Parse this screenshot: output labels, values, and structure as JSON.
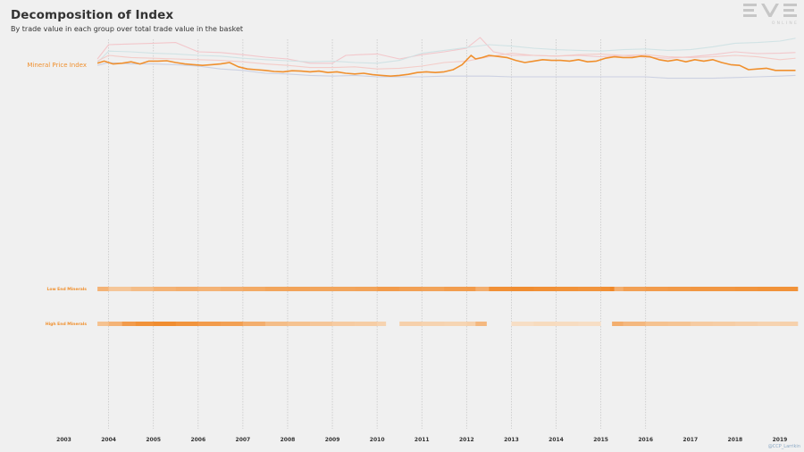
{
  "header": {
    "title": "Decomposition of Index",
    "subtitle": "By trade value in each group over total trade value in the basket"
  },
  "logo": {
    "wordmark": "EVE",
    "tagline": "ONLINE"
  },
  "credit": {
    "text": "@CCP_Larrikin"
  },
  "colors": {
    "background": "#f0f0f0",
    "accent": "#f0902e",
    "gridline": "#c8c8c8",
    "heatmap_empty": "#f0f0f0",
    "context_lines": [
      "#f2c4c8",
      "#cfe2e4",
      "#c9cfe0",
      "#f3c9c5"
    ]
  },
  "chart_data": [
    {
      "type": "line",
      "series": [
        {
          "name": "Mineral Price Index",
          "x": [
            2003.75,
            2003.9,
            2004.1,
            2004.3,
            2004.5,
            2004.7,
            2004.9,
            2005.1,
            2005.3,
            2005.5,
            2005.7,
            2005.9,
            2006.1,
            2006.3,
            2006.5,
            2006.7,
            2006.9,
            2007.1,
            2007.3,
            2007.5,
            2007.7,
            2007.9,
            2008.1,
            2008.3,
            2008.5,
            2008.7,
            2008.9,
            2009.1,
            2009.3,
            2009.5,
            2009.7,
            2009.9,
            2010.1,
            2010.3,
            2010.5,
            2010.7,
            2010.9,
            2011.1,
            2011.3,
            2011.5,
            2011.7,
            2011.9,
            2012.1,
            2012.2,
            2012.35,
            2012.5,
            2012.7,
            2012.9,
            2013.1,
            2013.3,
            2013.5,
            2013.7,
            2013.9,
            2014.1,
            2014.3,
            2014.5,
            2014.7,
            2014.9,
            2015.1,
            2015.3,
            2015.5,
            2015.7,
            2015.9,
            2016.1,
            2016.3,
            2016.5,
            2016.7,
            2016.9,
            2017.1,
            2017.3,
            2017.5,
            2017.7,
            2017.9,
            2018.1,
            2018.3,
            2018.5,
            2018.7,
            2018.9,
            2019.1,
            2019.35
          ],
          "y": [
            0.78,
            0.84,
            0.76,
            0.78,
            0.82,
            0.76,
            0.84,
            0.84,
            0.85,
            0.8,
            0.76,
            0.74,
            0.72,
            0.74,
            0.76,
            0.8,
            0.68,
            0.62,
            0.6,
            0.58,
            0.55,
            0.54,
            0.57,
            0.56,
            0.54,
            0.56,
            0.52,
            0.54,
            0.5,
            0.48,
            0.5,
            0.46,
            0.44,
            0.42,
            0.44,
            0.47,
            0.52,
            0.54,
            0.52,
            0.54,
            0.6,
            0.74,
            1.0,
            0.9,
            0.94,
            1.0,
            0.97,
            0.94,
            0.86,
            0.8,
            0.84,
            0.88,
            0.86,
            0.86,
            0.84,
            0.88,
            0.82,
            0.84,
            0.92,
            0.96,
            0.94,
            0.94,
            0.98,
            0.96,
            0.88,
            0.84,
            0.88,
            0.82,
            0.88,
            0.84,
            0.88,
            0.8,
            0.74,
            0.72,
            0.6,
            0.62,
            0.64,
            0.58,
            0.58,
            0.58
          ]
        },
        {
          "name": "",
          "x": [
            2003.75,
            2004.0,
            2004.5,
            2005.0,
            2005.5,
            2006.0,
            2006.5,
            2007.0,
            2007.5,
            2008.0,
            2008.5,
            2009.0,
            2009.3,
            2009.6,
            2010.0,
            2010.5,
            2011.0,
            2011.5,
            2012.0,
            2012.3,
            2012.6,
            2013.0,
            2013.5,
            2014.0,
            2014.5,
            2015.0,
            2015.5,
            2016.0,
            2016.5,
            2017.0,
            2017.5,
            2018.0,
            2018.5,
            2019.0,
            2019.35
          ],
          "y": [
            0.9,
            1.3,
            1.32,
            1.34,
            1.36,
            1.1,
            1.08,
            1.02,
            0.95,
            0.9,
            0.78,
            0.78,
            1.0,
            1.02,
            1.04,
            0.9,
            1.02,
            1.1,
            1.2,
            1.5,
            1.1,
            1.0,
            1.0,
            0.98,
            1.0,
            0.96,
            1.0,
            0.95,
            0.92,
            0.96,
            1.02,
            1.1,
            1.05,
            1.06,
            1.08
          ]
        },
        {
          "name": "",
          "x": [
            2003.75,
            2004.0,
            2004.5,
            2005.0,
            2005.5,
            2006.0,
            2006.5,
            2007.0,
            2007.5,
            2008.0,
            2008.5,
            2009.0,
            2009.5,
            2010.0,
            2010.5,
            2011.0,
            2011.5,
            2012.0,
            2012.5,
            2013.0,
            2013.5,
            2014.0,
            2014.5,
            2015.0,
            2015.5,
            2016.0,
            2016.5,
            2017.0,
            2017.5,
            2018.0,
            2018.5,
            2019.0,
            2019.35
          ],
          "y": [
            0.8,
            1.12,
            1.1,
            1.06,
            1.04,
            1.0,
            0.98,
            0.92,
            0.88,
            0.85,
            0.82,
            0.84,
            0.8,
            0.78,
            0.86,
            1.06,
            1.14,
            1.22,
            1.3,
            1.26,
            1.2,
            1.16,
            1.14,
            1.12,
            1.16,
            1.18,
            1.14,
            1.16,
            1.24,
            1.34,
            1.36,
            1.4,
            1.48
          ]
        },
        {
          "name": "",
          "x": [
            2003.75,
            2004.0,
            2004.5,
            2005.0,
            2005.5,
            2006.0,
            2006.5,
            2007.0,
            2007.5,
            2008.0,
            2008.5,
            2009.0,
            2009.5,
            2010.0,
            2010.5,
            2011.0,
            2011.5,
            2012.0,
            2012.5,
            2013.0,
            2013.5,
            2014.0,
            2014.5,
            2015.0,
            2015.5,
            2016.0,
            2016.5,
            2017.0,
            2017.5,
            2018.0,
            2018.5,
            2019.0,
            2019.35
          ],
          "y": [
            0.72,
            0.8,
            0.76,
            0.76,
            0.74,
            0.7,
            0.62,
            0.58,
            0.5,
            0.48,
            0.44,
            0.42,
            0.44,
            0.4,
            0.4,
            0.4,
            0.42,
            0.42,
            0.42,
            0.4,
            0.4,
            0.4,
            0.4,
            0.4,
            0.4,
            0.4,
            0.36,
            0.36,
            0.36,
            0.38,
            0.4,
            0.42,
            0.44
          ]
        },
        {
          "name": "",
          "x": [
            2003.75,
            2004.0,
            2004.5,
            2005.0,
            2005.5,
            2006.0,
            2006.5,
            2007.0,
            2007.5,
            2008.0,
            2008.5,
            2009.0,
            2009.5,
            2010.0,
            2010.5,
            2011.0,
            2011.5,
            2012.0,
            2012.5,
            2013.0,
            2013.5,
            2014.0,
            2014.5,
            2015.0,
            2015.5,
            2016.0,
            2016.5,
            2017.0,
            2017.5,
            2018.0,
            2018.5,
            2019.0,
            2019.35
          ],
          "y": [
            0.84,
            1.0,
            0.94,
            0.92,
            0.9,
            0.88,
            0.86,
            0.82,
            0.76,
            0.72,
            0.66,
            0.66,
            0.68,
            0.62,
            0.64,
            0.7,
            0.8,
            0.84,
            0.96,
            1.06,
            1.0,
            0.98,
            1.02,
            1.04,
            1.0,
            1.02,
            0.96,
            0.94,
            0.96,
            1.0,
            0.96,
            0.88,
            0.92
          ]
        }
      ],
      "xlim": [
        2002.75,
        2019.4
      ]
    },
    {
      "type": "heatmap",
      "rows": [
        {
          "name": "Low End Minerals",
          "x_start": [
            2003.75,
            2004.0,
            2004.5,
            2005.0,
            2005.5,
            2006.0,
            2006.5,
            2007.0,
            2007.5,
            2008.0,
            2008.5,
            2009.0,
            2009.5,
            2010.0,
            2010.5,
            2011.0,
            2011.5,
            2012.0,
            2012.2,
            2012.5,
            2013.0,
            2013.5,
            2014.0,
            2014.5,
            2015.0,
            2015.2,
            2015.3,
            2015.5,
            2016.0,
            2016.5,
            2017.0,
            2017.5,
            2018.0,
            2018.5,
            2019.0
          ],
          "intensity": [
            0.55,
            0.35,
            0.45,
            0.55,
            0.6,
            0.55,
            0.6,
            0.65,
            0.7,
            0.72,
            0.7,
            0.7,
            0.72,
            0.8,
            0.75,
            0.72,
            0.78,
            0.8,
            0.6,
            0.92,
            0.95,
            0.92,
            0.9,
            0.88,
            0.92,
            1.0,
            0.6,
            0.75,
            0.8,
            0.82,
            0.85,
            0.85,
            0.88,
            0.9,
            0.9
          ]
        },
        {
          "name": "High End Minerals",
          "x_start": [
            2003.75,
            2004.0,
            2004.3,
            2004.6,
            2005.0,
            2005.5,
            2006.0,
            2006.5,
            2007.0,
            2007.5,
            2008.0,
            2008.5,
            2009.0,
            2009.5,
            2010.0,
            2010.2,
            2010.5,
            2011.0,
            2011.5,
            2012.0,
            2012.2,
            2012.45,
            2013.0,
            2013.5,
            2014.0,
            2014.5,
            2015.0,
            2015.25,
            2015.5,
            2016.0,
            2016.5,
            2017.0,
            2017.5,
            2018.0,
            2018.5,
            2019.0
          ],
          "intensity": [
            0.4,
            0.55,
            0.8,
            0.9,
            0.95,
            0.88,
            0.8,
            0.75,
            0.6,
            0.45,
            0.4,
            0.35,
            0.3,
            0.28,
            0.22,
            0.0,
            0.25,
            0.22,
            0.2,
            0.24,
            0.5,
            0.0,
            0.1,
            0.14,
            0.12,
            0.1,
            0.0,
            0.6,
            0.5,
            0.4,
            0.38,
            0.3,
            0.28,
            0.25,
            0.22,
            0.24
          ]
        }
      ],
      "xlim": [
        2002.75,
        2019.4
      ]
    }
  ],
  "xaxis": {
    "tick_labels": [
      "2003",
      "2004",
      "2005",
      "2006",
      "2007",
      "2008",
      "2009",
      "2010",
      "2011",
      "2012",
      "2013",
      "2014",
      "2015",
      "2016",
      "2017",
      "2018",
      "2019"
    ],
    "gridlines_at": [
      2004,
      2005,
      2006,
      2007,
      2008,
      2009,
      2010,
      2011,
      2012,
      2013,
      2014,
      2015,
      2016
    ],
    "grid": true
  }
}
